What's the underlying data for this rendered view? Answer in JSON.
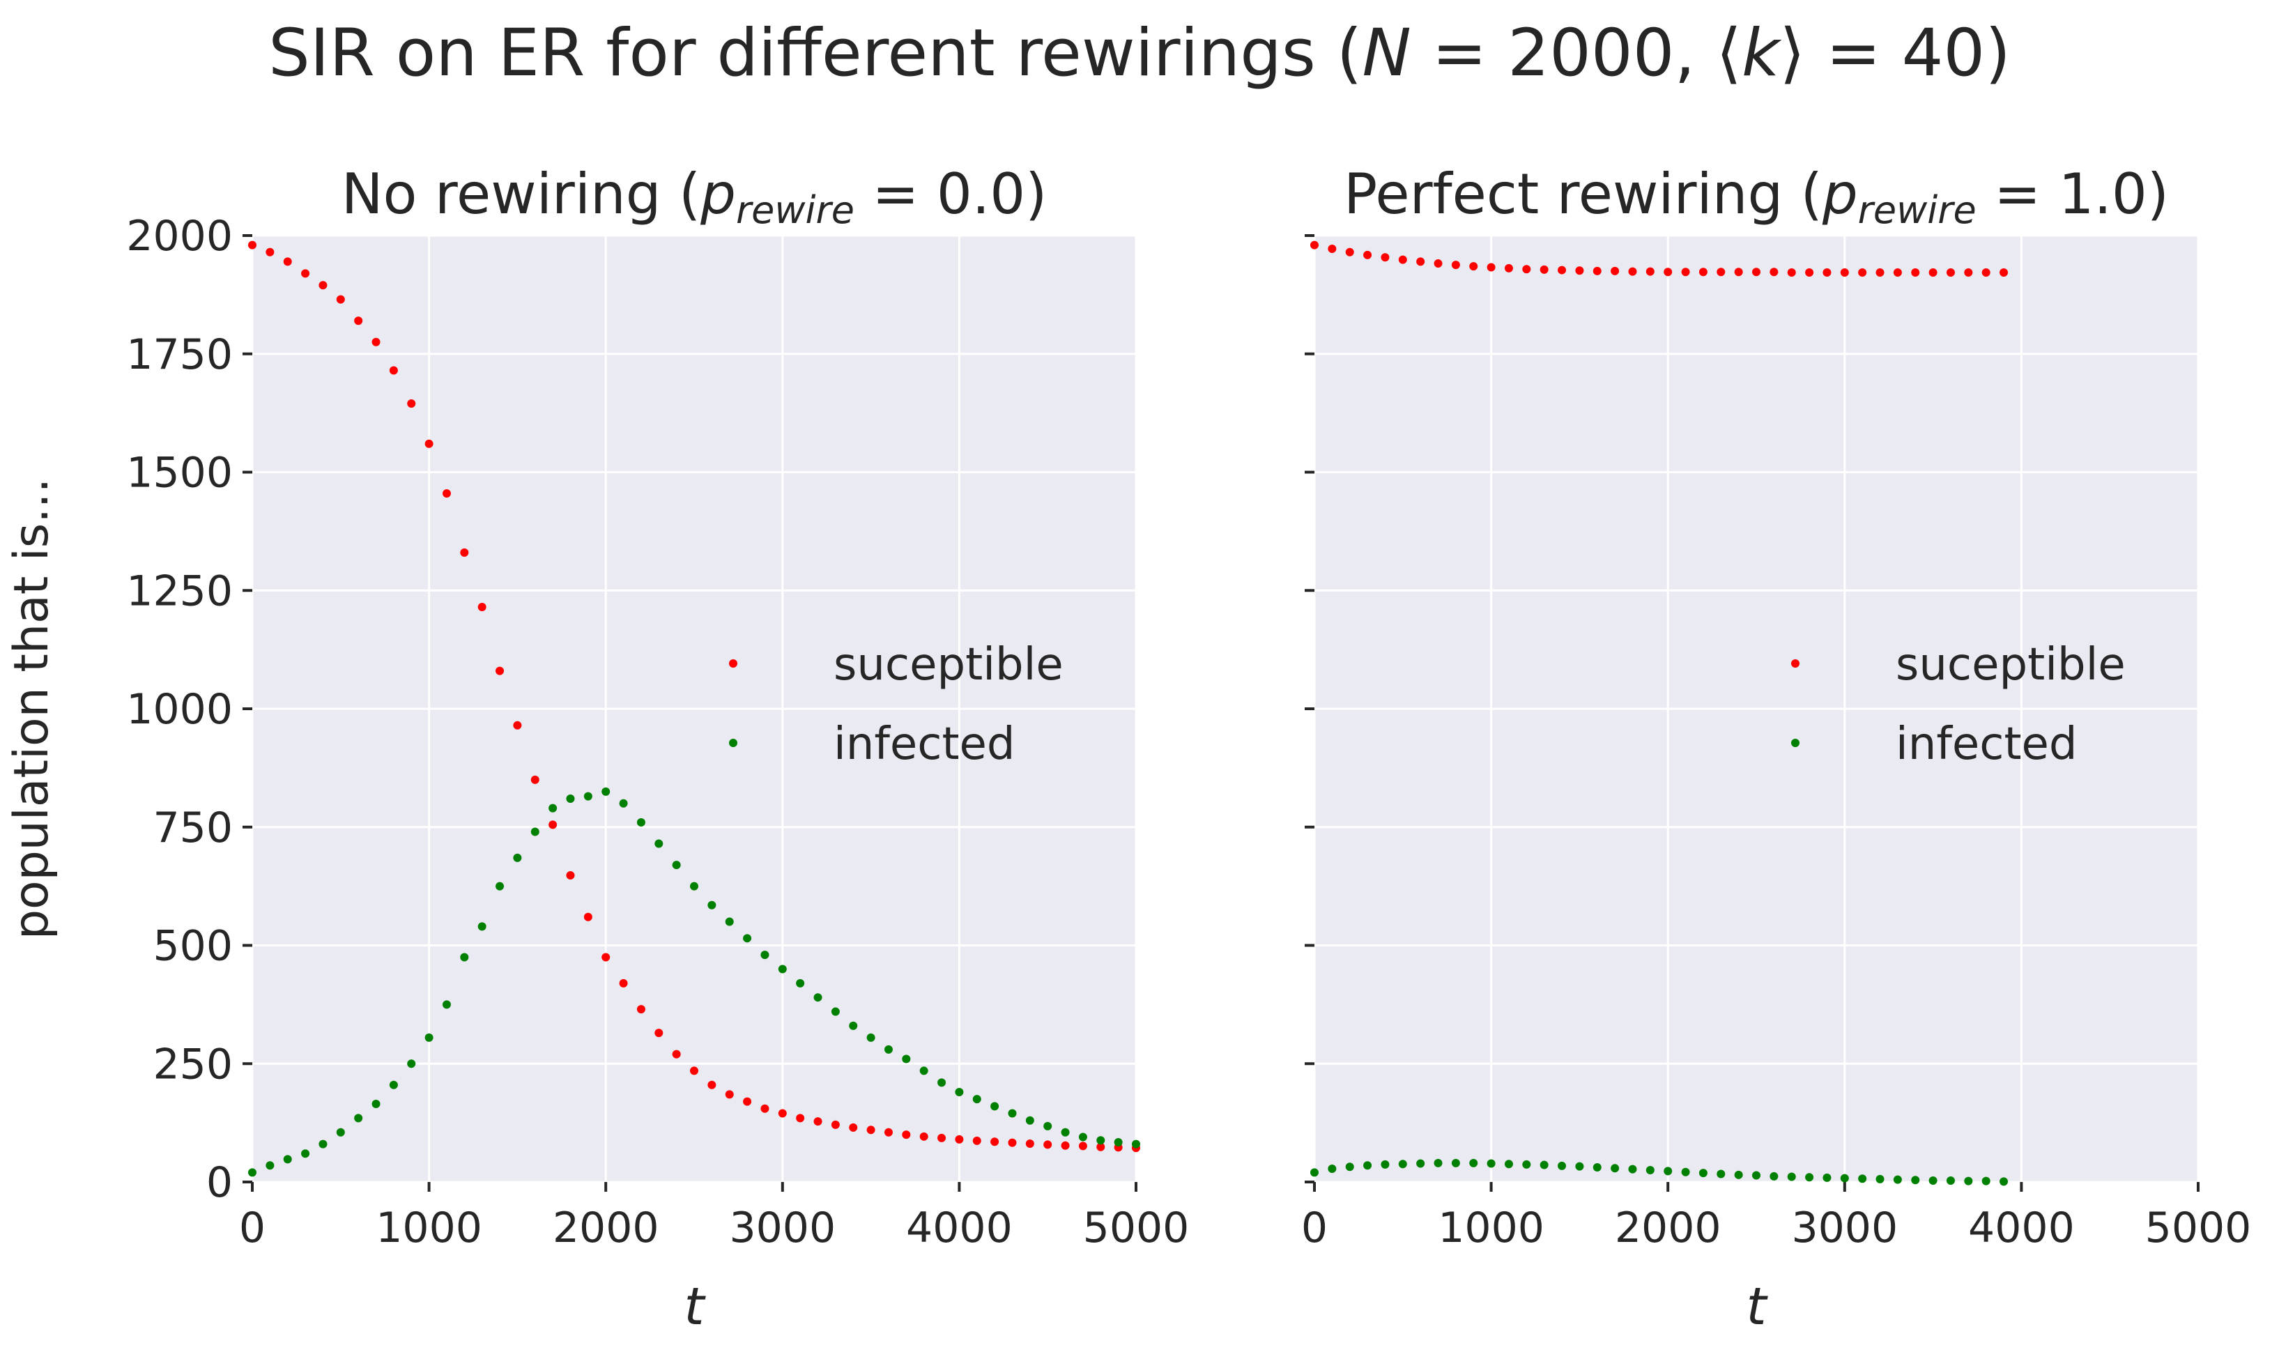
{
  "figure": {
    "suptitle_prefix": "SIR on ER for different rewirings (",
    "suptitle_n_symbol": "N",
    "suptitle_n_value": " = 2000, ⟨",
    "suptitle_k_symbol": "k",
    "suptitle_k_value": "⟩ = 40)"
  },
  "chart_data": [
    {
      "type": "scatter",
      "title_prefix": "No rewiring (",
      "title_symbol": "p",
      "title_subscript": "rewire",
      "title_suffix": " = 0.0)",
      "xlabel": "t",
      "ylabel": "population that is...",
      "xlim": [
        0,
        5000
      ],
      "ylim": [
        0,
        2000
      ],
      "xticks": [
        "0",
        "1000",
        "2000",
        "3000",
        "4000",
        "5000"
      ],
      "yticks": [
        "0",
        "250",
        "500",
        "750",
        "1000",
        "1250",
        "1500",
        "1750",
        "2000"
      ],
      "show_yticklabels": true,
      "grid": true,
      "legend_position": "right",
      "x": [
        0,
        100,
        200,
        300,
        400,
        500,
        600,
        700,
        800,
        900,
        1000,
        1100,
        1200,
        1300,
        1400,
        1500,
        1600,
        1700,
        1800,
        1900,
        2000,
        2100,
        2200,
        2300,
        2400,
        2500,
        2600,
        2700,
        2800,
        2900,
        3000,
        3100,
        3200,
        3300,
        3400,
        3500,
        3600,
        3700,
        3800,
        3900,
        4000,
        4100,
        4200,
        4300,
        4400,
        4500,
        4600,
        4700,
        4800,
        4900,
        5000
      ],
      "series": [
        {
          "name": "suceptible",
          "color": "#ff0000",
          "values": [
            1980,
            1965,
            1945,
            1920,
            1895,
            1865,
            1820,
            1775,
            1715,
            1645,
            1560,
            1455,
            1330,
            1215,
            1080,
            965,
            850,
            755,
            648,
            560,
            475,
            420,
            365,
            315,
            270,
            235,
            205,
            185,
            170,
            155,
            145,
            135,
            128,
            121,
            115,
            110,
            105,
            100,
            96,
            93,
            90,
            87,
            85,
            83,
            81,
            79,
            77,
            76,
            74,
            73,
            72
          ]
        },
        {
          "name": "infected",
          "color": "#008000",
          "values": [
            20,
            35,
            48,
            60,
            80,
            105,
            135,
            165,
            205,
            250,
            305,
            375,
            475,
            540,
            625,
            685,
            740,
            790,
            810,
            815,
            825,
            800,
            760,
            715,
            670,
            625,
            585,
            550,
            515,
            480,
            450,
            420,
            390,
            360,
            330,
            305,
            280,
            260,
            235,
            210,
            190,
            175,
            160,
            145,
            130,
            118,
            105,
            95,
            88,
            84,
            80
          ]
        }
      ]
    },
    {
      "type": "scatter",
      "title_prefix": "Perfect rewiring (",
      "title_symbol": "p",
      "title_subscript": "rewire",
      "title_suffix": " = 1.0)",
      "xlabel": "t",
      "ylabel": "",
      "xlim": [
        0,
        5000
      ],
      "ylim": [
        0,
        2000
      ],
      "xticks": [
        "0",
        "1000",
        "2000",
        "3000",
        "4000",
        "5000"
      ],
      "yticks": [
        "0",
        "250",
        "500",
        "750",
        "1000",
        "1250",
        "1500",
        "1750",
        "2000"
      ],
      "show_yticklabels": false,
      "grid": true,
      "legend_position": "right",
      "x": [
        0,
        100,
        200,
        300,
        400,
        500,
        600,
        700,
        800,
        900,
        1000,
        1100,
        1200,
        1300,
        1400,
        1500,
        1600,
        1700,
        1800,
        1900,
        2000,
        2100,
        2200,
        2300,
        2400,
        2500,
        2600,
        2700,
        2800,
        2900,
        3000,
        3100,
        3200,
        3300,
        3400,
        3500,
        3600,
        3700,
        3800,
        3900
      ],
      "series": [
        {
          "name": "suceptible",
          "color": "#ff0000",
          "values": [
            1980,
            1972,
            1965,
            1959,
            1954,
            1949,
            1945,
            1941,
            1938,
            1935,
            1933,
            1931,
            1929,
            1928,
            1927,
            1926,
            1925,
            1925,
            1924,
            1924,
            1923,
            1923,
            1923,
            1923,
            1923,
            1923,
            1923,
            1922,
            1922,
            1922,
            1922,
            1922,
            1922,
            1922,
            1922,
            1922,
            1922,
            1922,
            1922,
            1922
          ]
        },
        {
          "name": "infected",
          "color": "#008000",
          "values": [
            20,
            28,
            32,
            35,
            37,
            38,
            39,
            40,
            40,
            40,
            39,
            38,
            37,
            36,
            34,
            33,
            31,
            29,
            27,
            25,
            23,
            21,
            19,
            17,
            15,
            14,
            12,
            11,
            10,
            9,
            8,
            7,
            6,
            5,
            4,
            3,
            3,
            2,
            2,
            1
          ]
        }
      ]
    }
  ]
}
